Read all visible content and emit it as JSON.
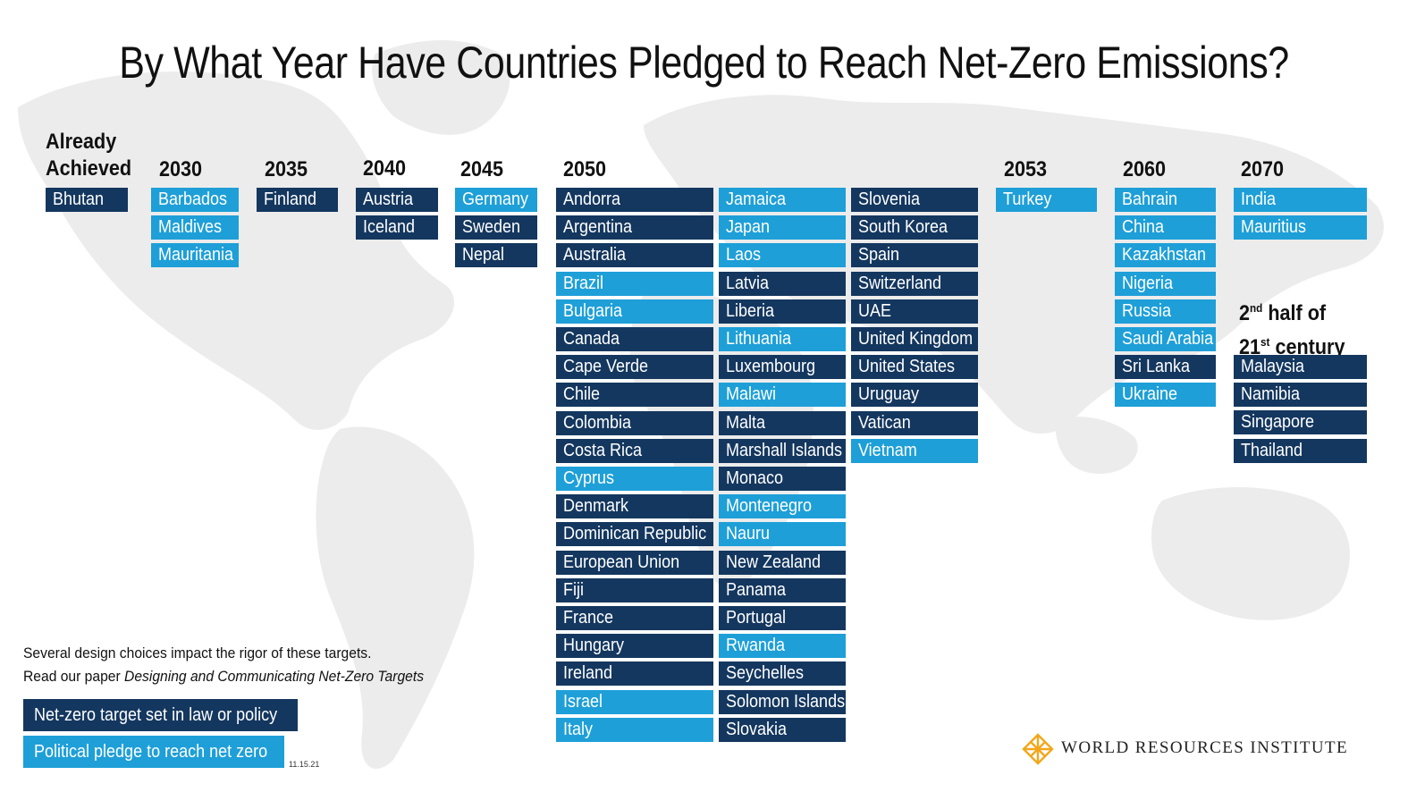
{
  "title": "By What Year Have Countries Pledged to Reach Net-Zero Emissions?",
  "colors": {
    "law": "#14375f",
    "pledge": "#1e9fd8"
  },
  "groups": {
    "already": {
      "label_line1": "Already",
      "label_line2": "Achieved",
      "items": [
        {
          "name": "Bhutan",
          "type": "law"
        }
      ]
    },
    "y2030": {
      "label": "2030",
      "items": [
        {
          "name": "Barbados",
          "type": "pledge"
        },
        {
          "name": "Maldives",
          "type": "pledge"
        },
        {
          "name": "Mauritania",
          "type": "pledge"
        }
      ]
    },
    "y2035": {
      "label": "2035",
      "items": [
        {
          "name": "Finland",
          "type": "law"
        }
      ]
    },
    "y2040": {
      "label": "2040",
      "items": [
        {
          "name": "Austria",
          "type": "law"
        },
        {
          "name": "Iceland",
          "type": "law"
        }
      ]
    },
    "y2045": {
      "label": "2045",
      "items": [
        {
          "name": "Germany",
          "type": "pledge"
        },
        {
          "name": "Sweden",
          "type": "law"
        },
        {
          "name": "Nepal",
          "type": "law"
        }
      ]
    },
    "y2050": {
      "label": "2050",
      "items": [
        {
          "name": "Andorra",
          "type": "law"
        },
        {
          "name": "Argentina",
          "type": "law"
        },
        {
          "name": "Australia",
          "type": "law"
        },
        {
          "name": "Brazil",
          "type": "pledge"
        },
        {
          "name": "Bulgaria",
          "type": "pledge"
        },
        {
          "name": "Canada",
          "type": "law"
        },
        {
          "name": "Cape Verde",
          "type": "law"
        },
        {
          "name": "Chile",
          "type": "law"
        },
        {
          "name": "Colombia",
          "type": "law"
        },
        {
          "name": "Costa Rica",
          "type": "law"
        },
        {
          "name": "Cyprus",
          "type": "pledge"
        },
        {
          "name": "Denmark",
          "type": "law"
        },
        {
          "name": "Dominican Republic",
          "type": "law"
        },
        {
          "name": "European Union",
          "type": "law"
        },
        {
          "name": "Fiji",
          "type": "law"
        },
        {
          "name": "France",
          "type": "law"
        },
        {
          "name": "Hungary",
          "type": "law"
        },
        {
          "name": "Ireland",
          "type": "law"
        },
        {
          "name": "Israel",
          "type": "pledge"
        },
        {
          "name": "Italy",
          "type": "pledge"
        },
        {
          "name": "Jamaica",
          "type": "pledge"
        },
        {
          "name": "Japan",
          "type": "pledge"
        },
        {
          "name": "Laos",
          "type": "pledge"
        },
        {
          "name": "Latvia",
          "type": "law"
        },
        {
          "name": "Liberia",
          "type": "law"
        },
        {
          "name": "Lithuania",
          "type": "pledge"
        },
        {
          "name": "Luxembourg",
          "type": "law"
        },
        {
          "name": "Malawi",
          "type": "pledge"
        },
        {
          "name": "Malta",
          "type": "law"
        },
        {
          "name": "Marshall Islands",
          "type": "law"
        },
        {
          "name": "Monaco",
          "type": "law"
        },
        {
          "name": "Montenegro",
          "type": "pledge"
        },
        {
          "name": "Nauru",
          "type": "pledge"
        },
        {
          "name": "New Zealand",
          "type": "law"
        },
        {
          "name": "Panama",
          "type": "law"
        },
        {
          "name": "Portugal",
          "type": "law"
        },
        {
          "name": "Rwanda",
          "type": "pledge"
        },
        {
          "name": "Seychelles",
          "type": "law"
        },
        {
          "name": "Solomon Islands",
          "type": "law"
        },
        {
          "name": "Slovakia",
          "type": "law"
        },
        {
          "name": "Slovenia",
          "type": "law"
        },
        {
          "name": "South Korea",
          "type": "law"
        },
        {
          "name": "Spain",
          "type": "law"
        },
        {
          "name": "Switzerland",
          "type": "law"
        },
        {
          "name": "UAE",
          "type": "law"
        },
        {
          "name": "United Kingdom",
          "type": "law"
        },
        {
          "name": "United States",
          "type": "law"
        },
        {
          "name": "Uruguay",
          "type": "law"
        },
        {
          "name": "Vatican",
          "type": "law"
        },
        {
          "name": "Vietnam",
          "type": "pledge"
        }
      ]
    },
    "y2053": {
      "label": "2053",
      "items": [
        {
          "name": "Turkey",
          "type": "pledge"
        }
      ]
    },
    "y2060": {
      "label": "2060",
      "items": [
        {
          "name": "Bahrain",
          "type": "pledge"
        },
        {
          "name": "China",
          "type": "pledge"
        },
        {
          "name": "Kazakhstan",
          "type": "pledge"
        },
        {
          "name": "Nigeria",
          "type": "pledge"
        },
        {
          "name": "Russia",
          "type": "pledge"
        },
        {
          "name": "Saudi Arabia",
          "type": "pledge"
        },
        {
          "name": "Sri Lanka",
          "type": "law"
        },
        {
          "name": "Ukraine",
          "type": "pledge"
        }
      ]
    },
    "y2070": {
      "label": "2070",
      "items": [
        {
          "name": "India",
          "type": "pledge"
        },
        {
          "name": "Mauritius",
          "type": "pledge"
        }
      ]
    },
    "second_half": {
      "label_num1": "2",
      "label_sup1": "nd",
      "label_rest1": " half of",
      "label_num2": "21",
      "label_sup2": "st",
      "label_rest2": " century",
      "items": [
        {
          "name": "Malaysia",
          "type": "law"
        },
        {
          "name": "Namibia",
          "type": "law"
        },
        {
          "name": "Singapore",
          "type": "law"
        },
        {
          "name": "Thailand",
          "type": "law"
        }
      ]
    }
  },
  "note": {
    "line1": "Several design choices impact the rigor of these targets.",
    "line2_prefix": "Read our paper ",
    "line2_title": "Designing and Communicating Net-Zero Targets"
  },
  "legend": {
    "law_label": "Net-zero target set in law or policy",
    "pledge_label": "Political pledge to reach net zero"
  },
  "date": "11.15.21",
  "brand": "WORLD RESOURCES INSTITUTE"
}
